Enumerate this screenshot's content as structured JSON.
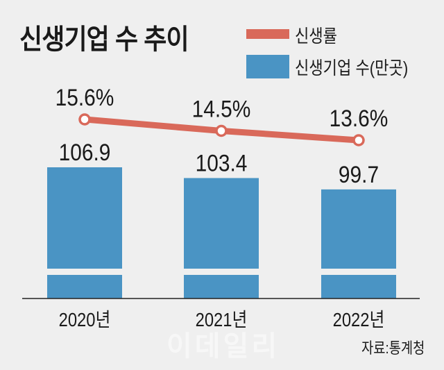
{
  "title": "신생기업 수 추이",
  "legend": {
    "line_label": "신생률",
    "bar_label": "신생기업 수(만곳)"
  },
  "source": "자료:통계청",
  "watermark": "이데일리",
  "colors": {
    "bar": "#4a94c4",
    "line": "#d9695a",
    "background": "#efefef"
  },
  "chart_data": {
    "type": "bar",
    "title": "신생기업 수 추이",
    "categories": [
      "2020년",
      "2021년",
      "2022년"
    ],
    "series": [
      {
        "name": "신생기업 수(만곳)",
        "type": "bar",
        "values": [
          106.9,
          103.4,
          99.7
        ],
        "labels": [
          "106.9",
          "103.4",
          "99.7"
        ]
      },
      {
        "name": "신생률",
        "type": "line",
        "values": [
          15.6,
          14.5,
          13.6
        ],
        "labels": [
          "15.6%",
          "14.5%",
          "13.6%"
        ]
      }
    ],
    "xlabel": "",
    "ylabel": "",
    "axis_break": true,
    "grid": false,
    "legend_position": "top-right",
    "annotation": "자료:통계청"
  }
}
